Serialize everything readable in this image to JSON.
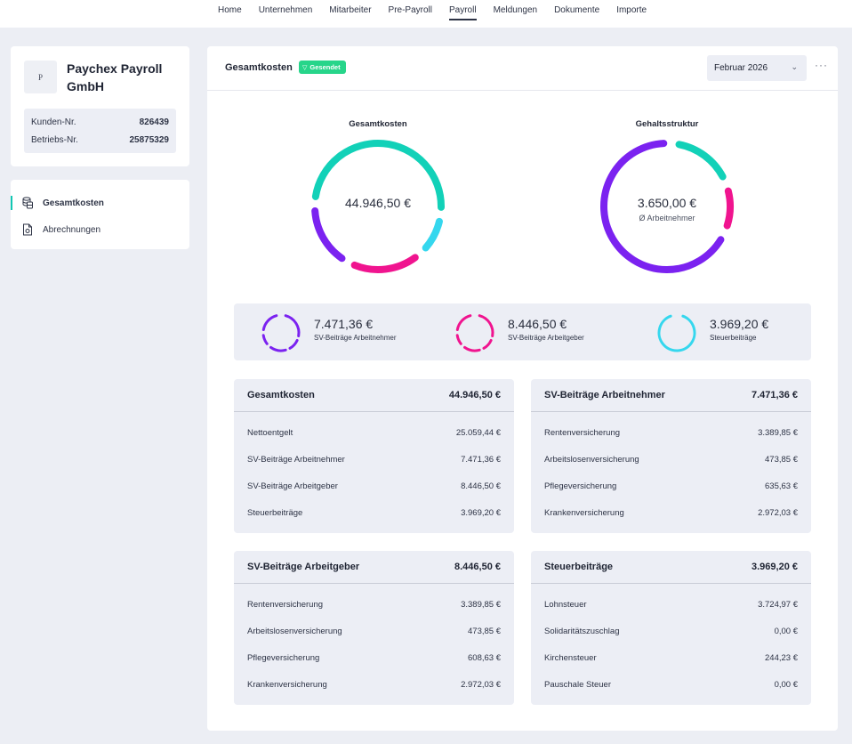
{
  "topnav": {
    "items": [
      {
        "label": "Home"
      },
      {
        "label": "Unternehmen"
      },
      {
        "label": "Mitarbeiter"
      },
      {
        "label": "Pre-Payroll"
      },
      {
        "label": "Payroll"
      },
      {
        "label": "Meldungen"
      },
      {
        "label": "Dokumente"
      },
      {
        "label": "Importe"
      }
    ],
    "active_index": 4
  },
  "company": {
    "logo_letter": "P",
    "name": "Paychex Payroll GmbH",
    "customer_no_label": "Kunden-Nr.",
    "customer_no": "826439",
    "business_no_label": "Betriebs-Nr.",
    "business_no": "25875329"
  },
  "sidenav": {
    "items": [
      {
        "label": "Gesamtkosten",
        "icon": "coins-icon",
        "active": true
      },
      {
        "label": "Abrechnungen",
        "icon": "document-icon",
        "active": false
      }
    ]
  },
  "header": {
    "title": "Gesamtkosten",
    "status_badge": "Gesendet",
    "month_select": "Februar 2026",
    "more_label": "···"
  },
  "colors": {
    "teal": "#12d1b8",
    "purple": "#7b22f0",
    "pink": "#f0148f",
    "cyan": "#35d7ee",
    "badge_green": "#27d58a"
  },
  "donuts": {
    "total": {
      "title": "Gesamtkosten",
      "value": "44.946,50 €",
      "segments": [
        {
          "name": "Nettoentgelt",
          "value": 25059.44,
          "color": "#12d1b8"
        },
        {
          "name": "Steuerbeiträge",
          "value": 3969.2,
          "color": "#35d7ee"
        },
        {
          "name": "SV-Beiträge Arbeitgeber",
          "value": 8446.5,
          "color": "#f0148f"
        },
        {
          "name": "SV-Beiträge Arbeitnehmer",
          "value": 7471.36,
          "color": "#7b22f0"
        }
      ]
    },
    "salary": {
      "title": "Gehaltsstruktur",
      "value": "3.650,00 €",
      "subtitle": "Ø Arbeitnehmer",
      "segments": [
        {
          "value": 0.16,
          "color": "#12d1b8"
        },
        {
          "value": 0.1,
          "color": "#f0148f"
        },
        {
          "value": 0.74,
          "color": "#7b22f0"
        }
      ]
    }
  },
  "summary": [
    {
      "value": "7.471,36 €",
      "label": "SV-Beiträge Arbeitnehmer",
      "color": "#7b22f0",
      "style": "dashed"
    },
    {
      "value": "8.446,50 €",
      "label": "SV-Beiträge Arbeitgeber",
      "color": "#f0148f",
      "style": "dashed"
    },
    {
      "value": "3.969,20 €",
      "label": "Steuerbeiträge",
      "color": "#35d7ee",
      "style": "gap"
    }
  ],
  "tables": [
    {
      "title": "Gesamtkosten",
      "total": "44.946,50 €",
      "rows": [
        {
          "label": "Nettoentgelt",
          "value": "25.059,44 €"
        },
        {
          "label": "SV-Beiträge Arbeitnehmer",
          "value": "7.471,36 €"
        },
        {
          "label": "SV-Beiträge Arbeitgeber",
          "value": "8.446,50 €"
        },
        {
          "label": "Steuerbeiträge",
          "value": "3.969,20 €"
        }
      ]
    },
    {
      "title": "SV-Beiträge Arbeitnehmer",
      "total": "7.471,36 €",
      "rows": [
        {
          "label": "Rentenversicherung",
          "value": "3.389,85 €"
        },
        {
          "label": "Arbeitslosenversicherung",
          "value": "473,85 €"
        },
        {
          "label": "Pflegeversicherung",
          "value": "635,63 €"
        },
        {
          "label": "Krankenversicherung",
          "value": "2.972,03 €"
        }
      ]
    },
    {
      "title": "SV-Beiträge Arbeitgeber",
      "total": "8.446,50 €",
      "rows": [
        {
          "label": "Rentenversicherung",
          "value": "3.389,85 €"
        },
        {
          "label": "Arbeitslosenversicherung",
          "value": "473,85 €"
        },
        {
          "label": "Pflegeversicherung",
          "value": "608,63 €"
        },
        {
          "label": "Krankenversicherung",
          "value": "2.972,03 €"
        }
      ]
    },
    {
      "title": "Steuerbeiträge",
      "total": "3.969,20 €",
      "rows": [
        {
          "label": "Lohnsteuer",
          "value": "3.724,97 €"
        },
        {
          "label": "Solidaritätszuschlag",
          "value": "0,00 €"
        },
        {
          "label": "Kirchensteuer",
          "value": "244,23 €"
        },
        {
          "label": "Pauschale Steuer",
          "value": "0,00 €"
        }
      ]
    }
  ]
}
